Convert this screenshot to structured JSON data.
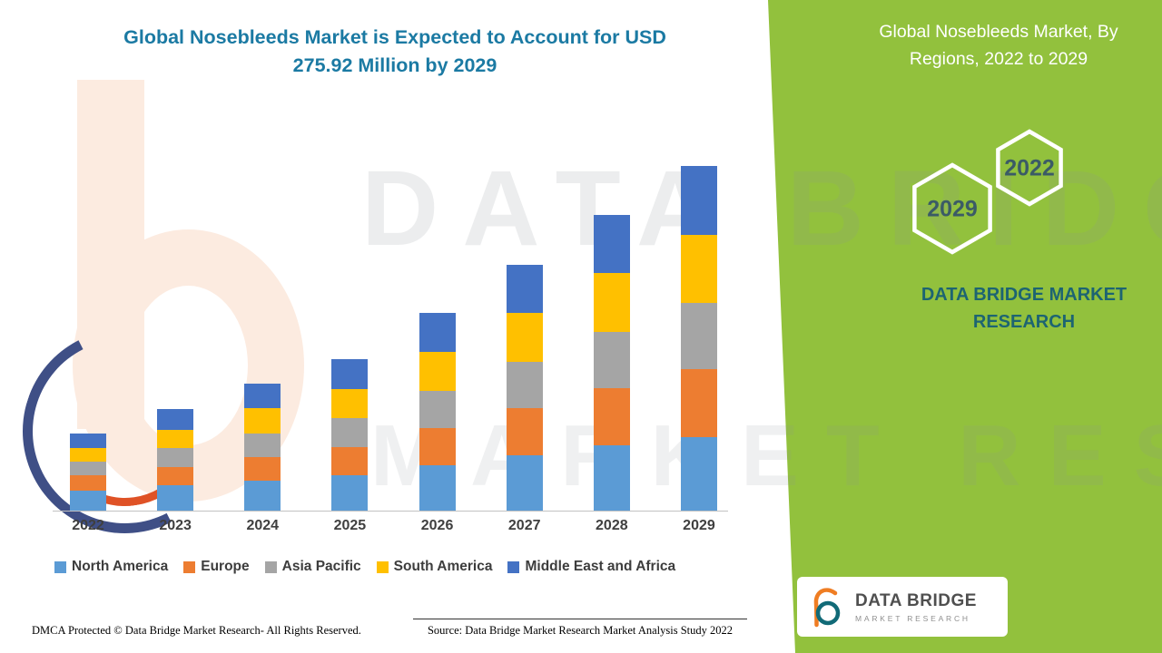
{
  "header": {
    "title_lines": [
      "Global Nosebleeds Market is Expected to Account for USD",
      "275.92 Million by 2029"
    ]
  },
  "side_panel": {
    "heading": "Global Nosebleeds Market, By Regions, 2022 to 2029",
    "hex_year_front": "2029",
    "hex_year_back": "2022",
    "brand_text": "DATA BRIDGE MARKET RESEARCH",
    "background_color": "#92c13d"
  },
  "watermark": {
    "line1": "DATA BRIDGE",
    "line2": "MARKET RESEARCH"
  },
  "logo_card": {
    "name": "DATA BRIDGE",
    "subtitle": "MARKET RESEARCH"
  },
  "footer": {
    "dmca": "DMCA Protected © Data Bridge Market Research- All Rights Reserved.",
    "source": "Source: Data Bridge Market Research Market Analysis Study 2022"
  },
  "chart_data": {
    "type": "bar",
    "stacked": true,
    "title": "Global Nosebleeds Market is Expected to Account for USD 275.92 Million by 2029",
    "unit": "USD Million",
    "categories": [
      "2022",
      "2023",
      "2024",
      "2025",
      "2026",
      "2027",
      "2028",
      "2029"
    ],
    "series": [
      {
        "name": "North America",
        "color": "#5B9BD5",
        "values": [
          16,
          20,
          24,
          28,
          36,
          44,
          52,
          59
        ]
      },
      {
        "name": "Europe",
        "color": "#ED7D31",
        "values": [
          12,
          15,
          19,
          23,
          30,
          38,
          46,
          54
        ]
      },
      {
        "name": "Asia Pacific",
        "color": "#A5A5A5",
        "values": [
          11,
          15,
          19,
          23,
          30,
          37,
          45,
          53
        ]
      },
      {
        "name": "South America",
        "color": "#FFC000",
        "values": [
          11,
          15,
          20,
          23,
          31,
          39,
          47,
          55
        ]
      },
      {
        "name": "Middle East and Africa",
        "color": "#4472C4",
        "values": [
          12,
          16,
          20,
          24,
          31,
          39,
          47,
          54.92
        ]
      }
    ],
    "totals_note": "2029 total = 275.92 USD Million",
    "ylim": [
      0,
      280
    ],
    "gridlines": false,
    "legend_position": "bottom"
  }
}
